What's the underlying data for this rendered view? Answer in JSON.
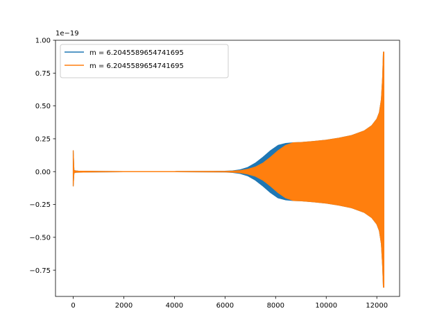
{
  "chart_data": {
    "type": "line",
    "title": "",
    "xlabel": "",
    "ylabel": "",
    "y_offset_text": "1e−19",
    "xlim": [
      -700,
      12900
    ],
    "ylim": [
      -0.95,
      1.0
    ],
    "x_ticks": [
      0,
      2000,
      4000,
      6000,
      8000,
      10000,
      12000
    ],
    "x_tick_labels": [
      "0",
      "2000",
      "4000",
      "6000",
      "8000",
      "10000",
      "12000"
    ],
    "y_ticks": [
      -0.75,
      -0.5,
      -0.25,
      0.0,
      0.25,
      0.5,
      0.75,
      1.0
    ],
    "y_tick_labels": [
      "−0.75",
      "−0.50",
      "−0.25",
      "0.00",
      "0.25",
      "0.50",
      "0.75",
      "1.00"
    ],
    "grid": false,
    "legend_position": "top-left",
    "series": [
      {
        "name": "m = 6.2045589654741695",
        "color": "#1f77b4",
        "envelope": {
          "x": [
            0,
            30,
            60,
            100,
            200,
            1000,
            2000,
            4000,
            5500,
            6000,
            6300,
            6600,
            6900,
            7200,
            7500,
            7800,
            8100,
            8400,
            8700,
            9000,
            9500,
            10000,
            10500,
            11000,
            11500,
            11800,
            12000,
            12100,
            12180,
            12230,
            12260,
            12280
          ],
          "upper": [
            0.16,
            0.01,
            0.008,
            0.005,
            0.004,
            0.002,
            0.001,
            0.001,
            0.002,
            0.003,
            0.006,
            0.014,
            0.032,
            0.065,
            0.11,
            0.16,
            0.2,
            0.215,
            0.22,
            0.222,
            0.23,
            0.24,
            0.255,
            0.275,
            0.31,
            0.35,
            0.4,
            0.45,
            0.55,
            0.72,
            0.91,
            0.91
          ],
          "lower": [
            -0.11,
            -0.01,
            -0.008,
            -0.005,
            -0.004,
            -0.002,
            -0.001,
            -0.001,
            -0.002,
            -0.003,
            -0.006,
            -0.014,
            -0.032,
            -0.065,
            -0.11,
            -0.16,
            -0.2,
            -0.215,
            -0.22,
            -0.222,
            -0.23,
            -0.24,
            -0.255,
            -0.275,
            -0.31,
            -0.35,
            -0.4,
            -0.45,
            -0.55,
            -0.72,
            -0.88,
            -0.88
          ]
        }
      },
      {
        "name": "m = 6.2045589654741695",
        "color": "#ff7f0e",
        "envelope": {
          "x": [
            0,
            30,
            60,
            100,
            200,
            1000,
            2000,
            4000,
            5500,
            6000,
            6300,
            6600,
            6900,
            7200,
            7500,
            7800,
            8100,
            8400,
            8700,
            9000,
            9500,
            10000,
            10500,
            11000,
            11500,
            11800,
            12000,
            12100,
            12180,
            12230,
            12260,
            12280
          ],
          "upper": [
            0.16,
            0.01,
            0.008,
            0.005,
            0.004,
            0.002,
            0.001,
            0.001,
            0.002,
            0.002,
            0.004,
            0.008,
            0.018,
            0.035,
            0.065,
            0.11,
            0.16,
            0.2,
            0.22,
            0.222,
            0.23,
            0.24,
            0.255,
            0.275,
            0.31,
            0.35,
            0.4,
            0.45,
            0.55,
            0.72,
            0.91,
            0.91
          ],
          "lower": [
            -0.11,
            -0.01,
            -0.008,
            -0.005,
            -0.004,
            -0.002,
            -0.001,
            -0.001,
            -0.002,
            -0.002,
            -0.004,
            -0.008,
            -0.018,
            -0.035,
            -0.065,
            -0.11,
            -0.16,
            -0.2,
            -0.22,
            -0.222,
            -0.23,
            -0.24,
            -0.255,
            -0.275,
            -0.31,
            -0.35,
            -0.4,
            -0.45,
            -0.55,
            -0.72,
            -0.88,
            -0.88
          ]
        }
      }
    ]
  }
}
